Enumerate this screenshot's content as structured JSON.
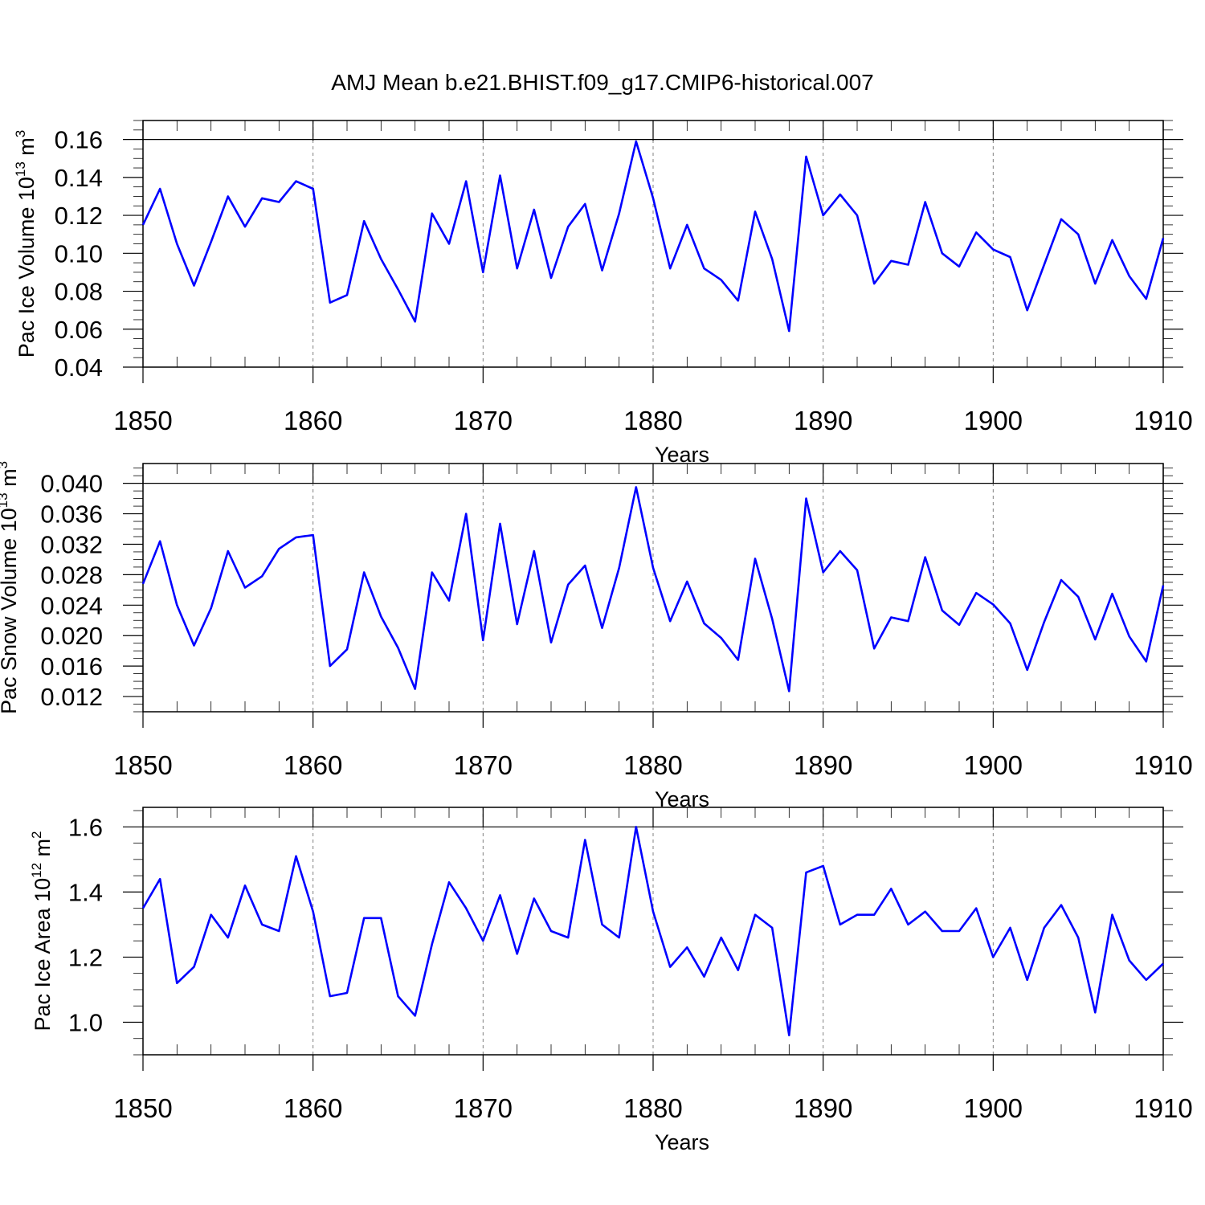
{
  "title": "AMJ Mean b.e21.BHIST.f09_g17.CMIP6-historical.007",
  "line_color": "#0000ff",
  "chart_data": [
    {
      "type": "line",
      "ylabel_main": "Pac Ice Volume 10",
      "ylabel_exp": "13",
      "ylabel_unit": " m",
      "ylabel_unit_exp": "3",
      "xlabel": "Years",
      "xlim": [
        1850,
        1910
      ],
      "ylim": [
        0.04,
        0.17
      ],
      "yticks": [
        0.04,
        0.06,
        0.08,
        0.1,
        0.12,
        0.14,
        0.16
      ],
      "ytick_labels": [
        "0.04",
        "0.06",
        "0.08",
        "0.10",
        "0.12",
        "0.14",
        "0.16"
      ],
      "yminor_step": 0.005,
      "xticks": [
        1850,
        1860,
        1870,
        1880,
        1890,
        1900,
        1910
      ],
      "xtick_labels": [
        "1850",
        "1860",
        "1870",
        "1880",
        "1890",
        "1900",
        "1910"
      ],
      "vgrid": [
        1860,
        1870,
        1880,
        1890,
        1900
      ],
      "hline": 0.16,
      "x_start": 1850,
      "values": [
        0.115,
        0.134,
        0.105,
        0.083,
        0.106,
        0.13,
        0.114,
        0.129,
        0.127,
        0.138,
        0.134,
        0.074,
        0.078,
        0.117,
        0.097,
        0.081,
        0.064,
        0.121,
        0.105,
        0.138,
        0.09,
        0.141,
        0.092,
        0.123,
        0.087,
        0.114,
        0.126,
        0.091,
        0.121,
        0.159,
        0.129,
        0.092,
        0.115,
        0.092,
        0.086,
        0.075,
        0.122,
        0.097,
        0.059,
        0.151,
        0.12,
        0.131,
        0.12,
        0.084,
        0.096,
        0.094,
        0.127,
        0.1,
        0.093,
        0.111,
        0.102,
        0.098,
        0.07,
        0.094,
        0.118,
        0.11,
        0.084,
        0.107,
        0.088,
        0.076,
        0.108
      ]
    },
    {
      "type": "line",
      "ylabel_main": "Pac Snow Volume 10",
      "ylabel_exp": "13",
      "ylabel_unit": " m",
      "ylabel_unit_exp": "3",
      "xlabel": "Years",
      "xlim": [
        1850,
        1910
      ],
      "ylim": [
        0.01,
        0.0426
      ],
      "yticks": [
        0.012,
        0.016,
        0.02,
        0.024,
        0.028,
        0.032,
        0.036,
        0.04
      ],
      "ytick_labels": [
        "0.012",
        "0.016",
        "0.020",
        "0.024",
        "0.028",
        "0.032",
        "0.036",
        "0.040"
      ],
      "yminor_step": 0.001,
      "xticks": [
        1850,
        1860,
        1870,
        1880,
        1890,
        1900,
        1910
      ],
      "xtick_labels": [
        "1850",
        "1860",
        "1870",
        "1880",
        "1890",
        "1900",
        "1910"
      ],
      "vgrid": [
        1860,
        1870,
        1880,
        1890,
        1900
      ],
      "hline": 0.04,
      "x_start": 1850,
      "values": [
        0.0268,
        0.0324,
        0.024,
        0.0187,
        0.0236,
        0.0311,
        0.0263,
        0.0278,
        0.0314,
        0.0329,
        0.0332,
        0.016,
        0.0182,
        0.0283,
        0.0225,
        0.0184,
        0.013,
        0.0283,
        0.0246,
        0.036,
        0.0194,
        0.0347,
        0.0215,
        0.0311,
        0.0191,
        0.0267,
        0.0292,
        0.021,
        0.0289,
        0.0395,
        0.0289,
        0.0219,
        0.0271,
        0.0216,
        0.0197,
        0.0168,
        0.0301,
        0.0222,
        0.0127,
        0.038,
        0.0283,
        0.0311,
        0.0286,
        0.0183,
        0.0224,
        0.0219,
        0.0303,
        0.0233,
        0.0214,
        0.0256,
        0.0241,
        0.0216,
        0.0155,
        0.0218,
        0.0273,
        0.0251,
        0.0195,
        0.0255,
        0.0199,
        0.0166,
        0.0266
      ]
    },
    {
      "type": "line",
      "ylabel_main": "Pac Ice Area 10",
      "ylabel_exp": "12",
      "ylabel_unit": " m",
      "ylabel_unit_exp": "2",
      "xlabel": "Years",
      "xlim": [
        1850,
        1910
      ],
      "ylim": [
        0.9,
        1.66
      ],
      "yticks": [
        1.0,
        1.2,
        1.4,
        1.6
      ],
      "ytick_labels": [
        "1.0",
        "1.2",
        "1.4",
        "1.6"
      ],
      "yminor_step": 0.05,
      "xticks": [
        1850,
        1860,
        1870,
        1880,
        1890,
        1900,
        1910
      ],
      "xtick_labels": [
        "1850",
        "1860",
        "1870",
        "1880",
        "1890",
        "1900",
        "1910"
      ],
      "vgrid": [
        1860,
        1870,
        1880,
        1890,
        1900
      ],
      "hline": 1.6,
      "x_start": 1850,
      "values": [
        1.35,
        1.44,
        1.12,
        1.17,
        1.33,
        1.26,
        1.42,
        1.3,
        1.28,
        1.51,
        1.34,
        1.08,
        1.09,
        1.32,
        1.32,
        1.08,
        1.02,
        1.24,
        1.43,
        1.35,
        1.25,
        1.39,
        1.21,
        1.38,
        1.28,
        1.26,
        1.56,
        1.3,
        1.26,
        1.6,
        1.34,
        1.17,
        1.23,
        1.14,
        1.26,
        1.16,
        1.33,
        1.29,
        0.96,
        1.46,
        1.48,
        1.3,
        1.33,
        1.33,
        1.41,
        1.3,
        1.34,
        1.28,
        1.28,
        1.35,
        1.2,
        1.29,
        1.13,
        1.29,
        1.36,
        1.26,
        1.03,
        1.33,
        1.19,
        1.13,
        1.18
      ]
    }
  ]
}
